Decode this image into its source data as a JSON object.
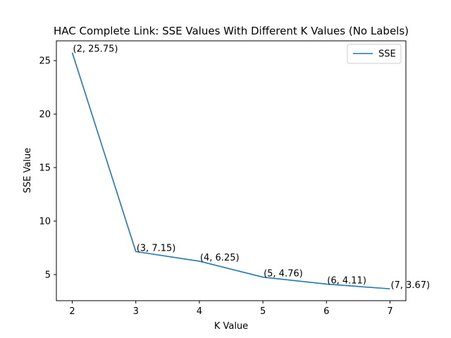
{
  "chart_data": {
    "type": "line",
    "title": "HAC Complete Link: SSE Values With Different K Values (No Labels)",
    "xlabel": "K Value",
    "ylabel": "SSE Value",
    "x": [
      2,
      3,
      4,
      5,
      6,
      7
    ],
    "series": [
      {
        "name": "SSE",
        "values": [
          25.75,
          7.15,
          6.25,
          4.76,
          4.11,
          3.67
        ],
        "color": "#1f77b4"
      }
    ],
    "annotations": [
      "(2, 25.75)",
      "(3, 7.15)",
      "(4, 6.25)",
      "(5, 4.76)",
      "(6, 4.11)",
      "(7, 3.67)"
    ],
    "xticks": [
      2,
      3,
      4,
      5,
      6,
      7
    ],
    "yticks": [
      5,
      10,
      15,
      20,
      25
    ],
    "xlim": [
      1.75,
      7.25
    ],
    "ylim": [
      2.56,
      26.85
    ],
    "grid": false,
    "legend_position": "upper-right"
  }
}
